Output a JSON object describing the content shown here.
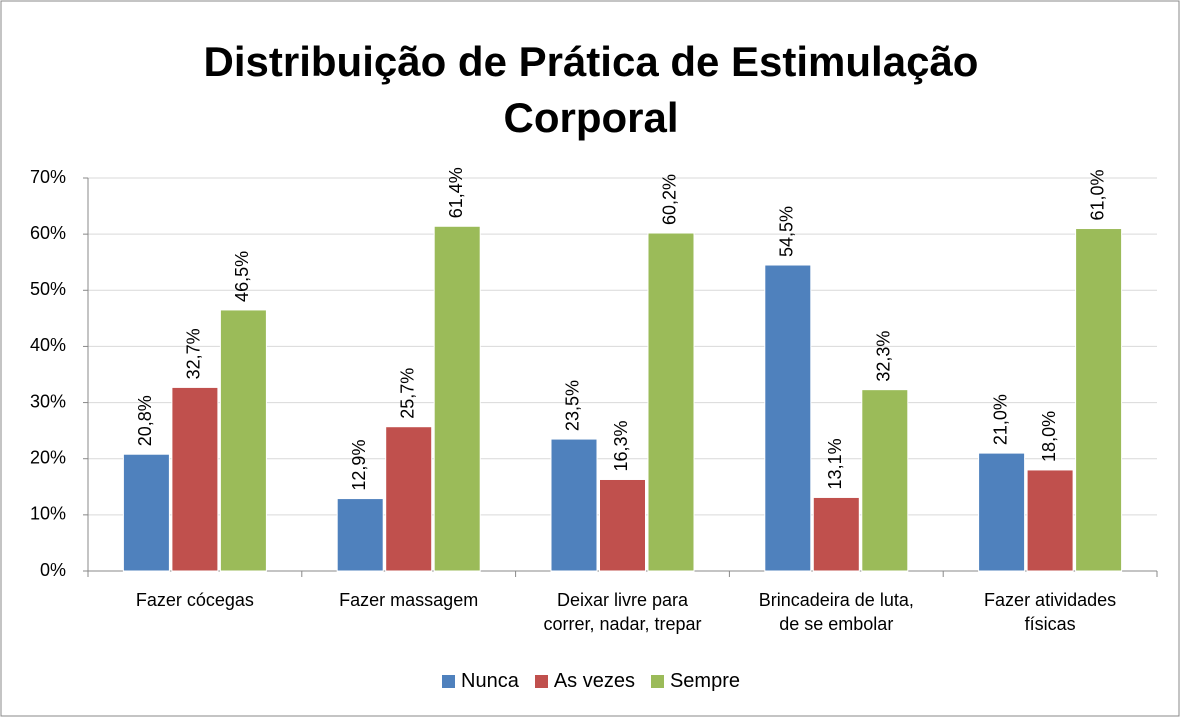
{
  "chart_data": {
    "type": "bar",
    "title": "Distribuição de Prática de Estimulação Corporal",
    "categories": [
      "Fazer cócegas",
      "Fazer massagem",
      "Deixar livre para\ncorrer, nadar, trepar",
      "Brincadeira de luta,\nde se embolar",
      "Fazer atividades\nfísicas"
    ],
    "series": [
      {
        "name": "Nunca",
        "color": "#4f81bd",
        "values": [
          20.8,
          12.9,
          23.5,
          54.5,
          21.0
        ],
        "value_labels": [
          "20,8%",
          "12,9%",
          "23,5%",
          "54,5%",
          "21,0%"
        ]
      },
      {
        "name": "As vezes",
        "color": "#c0504d",
        "values": [
          32.7,
          25.7,
          16.3,
          13.1,
          18.0
        ],
        "value_labels": [
          "32,7%",
          "25,7%",
          "16,3%",
          "13,1%",
          "18,0%"
        ]
      },
      {
        "name": "Sempre",
        "color": "#9bbb59",
        "values": [
          46.5,
          61.4,
          60.2,
          32.3,
          61.0
        ],
        "value_labels": [
          "46,5%",
          "61,4%",
          "60,2%",
          "32,3%",
          "61,0%"
        ]
      }
    ],
    "ylim": [
      0,
      70
    ],
    "yticks": [
      {
        "value": 0,
        "label": "0%"
      },
      {
        "value": 10,
        "label": "10%"
      },
      {
        "value": 20,
        "label": "20%"
      },
      {
        "value": 30,
        "label": "30%"
      },
      {
        "value": 40,
        "label": "40%"
      },
      {
        "value": 50,
        "label": "50%"
      },
      {
        "value": 60,
        "label": "60%"
      },
      {
        "value": 70,
        "label": "70%"
      }
    ],
    "grid": true,
    "legend": "bottom"
  }
}
